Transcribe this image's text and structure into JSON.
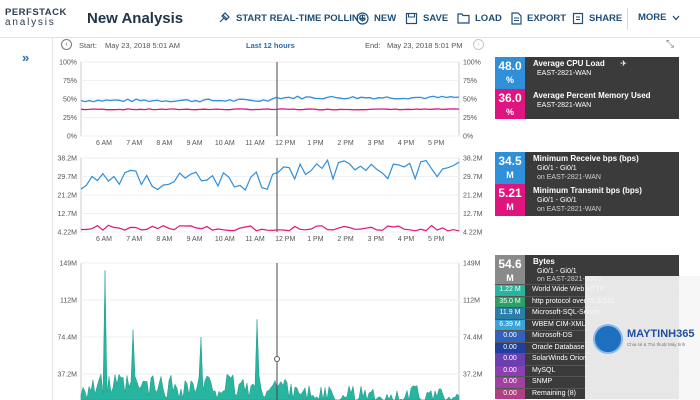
{
  "app": {
    "logo_line1": "PERFSTACK",
    "logo_line2": "analysis",
    "title": "New Analysis"
  },
  "toolbar": {
    "realtime": "START REAL-TIME POLLING",
    "new": "NEW",
    "save": "SAVE",
    "load": "LOAD",
    "export": "EXPORT",
    "share": "SHARE",
    "more": "MORE"
  },
  "timebar": {
    "start_label": "Start:",
    "start_value": "May 23, 2018 5:01 AM",
    "range": "Last 12 hours",
    "end_label": "End:",
    "end_value": "May 23, 2018 5:01 PM"
  },
  "colors": {
    "blue": "#2f8fd8",
    "magenta": "#e0147f",
    "teal": "#28b5a0",
    "gray": "#8a8a8a",
    "legend_bg": "#3b3b3b"
  },
  "x_ticks": [
    "6 AM",
    "7 AM",
    "8 AM",
    "9 AM",
    "10 AM",
    "11 AM",
    "12 PM",
    "1 PM",
    "2 PM",
    "3 PM",
    "4 PM",
    "5 PM"
  ],
  "chart1": {
    "y_ticks": [
      "100%",
      "75%",
      "50%",
      "25%",
      "0%"
    ],
    "legend": [
      {
        "value": "48.0",
        "unit": "%",
        "title": "Average CPU Load",
        "sub": "EAST-2821-WAN",
        "color": "#2f8fd8"
      },
      {
        "value": "36.0",
        "unit": "%",
        "title": "Average Percent Memory Used",
        "sub": "EAST-2821-WAN",
        "color": "#e0147f"
      }
    ]
  },
  "chart2": {
    "y_ticks": [
      "38.2M",
      "29.7M",
      "21.2M",
      "12.7M",
      "4.22M"
    ],
    "legend": [
      {
        "value": "34.5",
        "unit": "M",
        "title": "Minimum Receive bps (bps)",
        "sub": "Gi0/1 - Gi0/1",
        "sub2": "on EAST-2821-WAN",
        "color": "#2f8fd8"
      },
      {
        "value": "5.21",
        "unit": "M",
        "title": "Minimum Transmit bps (bps)",
        "sub": "Gi0/1 - Gi0/1",
        "sub2": "on EAST-2821-WAN",
        "color": "#e0147f"
      }
    ]
  },
  "chart3": {
    "y_ticks": [
      "149M",
      "112M",
      "74.4M",
      "37.2M"
    ],
    "header": {
      "value": "54.6",
      "unit": "M",
      "title": "Bytes",
      "sub": "Gi0/1 - Gi0/1",
      "sub2": "on EAST-2821-WAN",
      "color": "#8a8a8a"
    },
    "rows": [
      {
        "value": "1.22 M",
        "label": "World Wide Web HTTP",
        "color": "#28b5a0"
      },
      {
        "value": "35.0 M",
        "label": "http protocol over TLS/SSL",
        "color": "#2aa066"
      },
      {
        "value": "11.9 M",
        "label": "Microsoft-SQL-Server",
        "color": "#2a7ea8"
      },
      {
        "value": "6.39 M",
        "label": "WBEM CIM-XML",
        "color": "#3aa3d8"
      },
      {
        "value": "0.00",
        "label": "Microsoft-DS",
        "color": "#3060c0"
      },
      {
        "value": "0.00",
        "label": "Oracle Database",
        "color": "#2040a0"
      },
      {
        "value": "0.00",
        "label": "SolarWinds Orion",
        "color": "#6a40b0"
      },
      {
        "value": "0.00",
        "label": "MySQL",
        "color": "#8a40b0"
      },
      {
        "value": "0.00",
        "label": "SNMP",
        "color": "#a040a0"
      },
      {
        "value": "0.00",
        "label": "Remaining (8)",
        "color": "#b04080"
      }
    ]
  },
  "watermark": {
    "brand": "MAYTINH365",
    "tagline": "Chia sẻ & Thủ thuật Máy tính"
  }
}
